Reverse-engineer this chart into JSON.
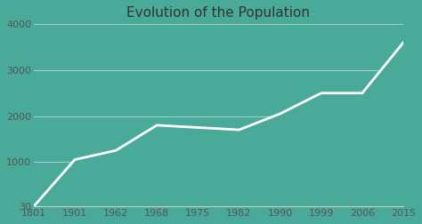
{
  "title": "Evolution of the Population",
  "x_labels": [
    "1801",
    "1901",
    "1962",
    "1968",
    "1975",
    "1982",
    "1990",
    "1999",
    "2006",
    "2015"
  ],
  "y": [
    30,
    1050,
    1250,
    1800,
    1750,
    1700,
    2050,
    2500,
    2500,
    3600
  ],
  "ylim": [
    30,
    4000
  ],
  "yticks": [
    30,
    1000,
    2000,
    3000,
    4000
  ],
  "ytick_labels": [
    "30",
    "1000",
    "2000",
    "3000",
    "4000"
  ],
  "fill_color": "#4aaa99",
  "line_color": "#ffffff",
  "bg_color": "#4aaa99",
  "title_fontsize": 11,
  "tick_fontsize": 8,
  "line_width": 2.0,
  "axis_bottom_color": "#cccccc"
}
